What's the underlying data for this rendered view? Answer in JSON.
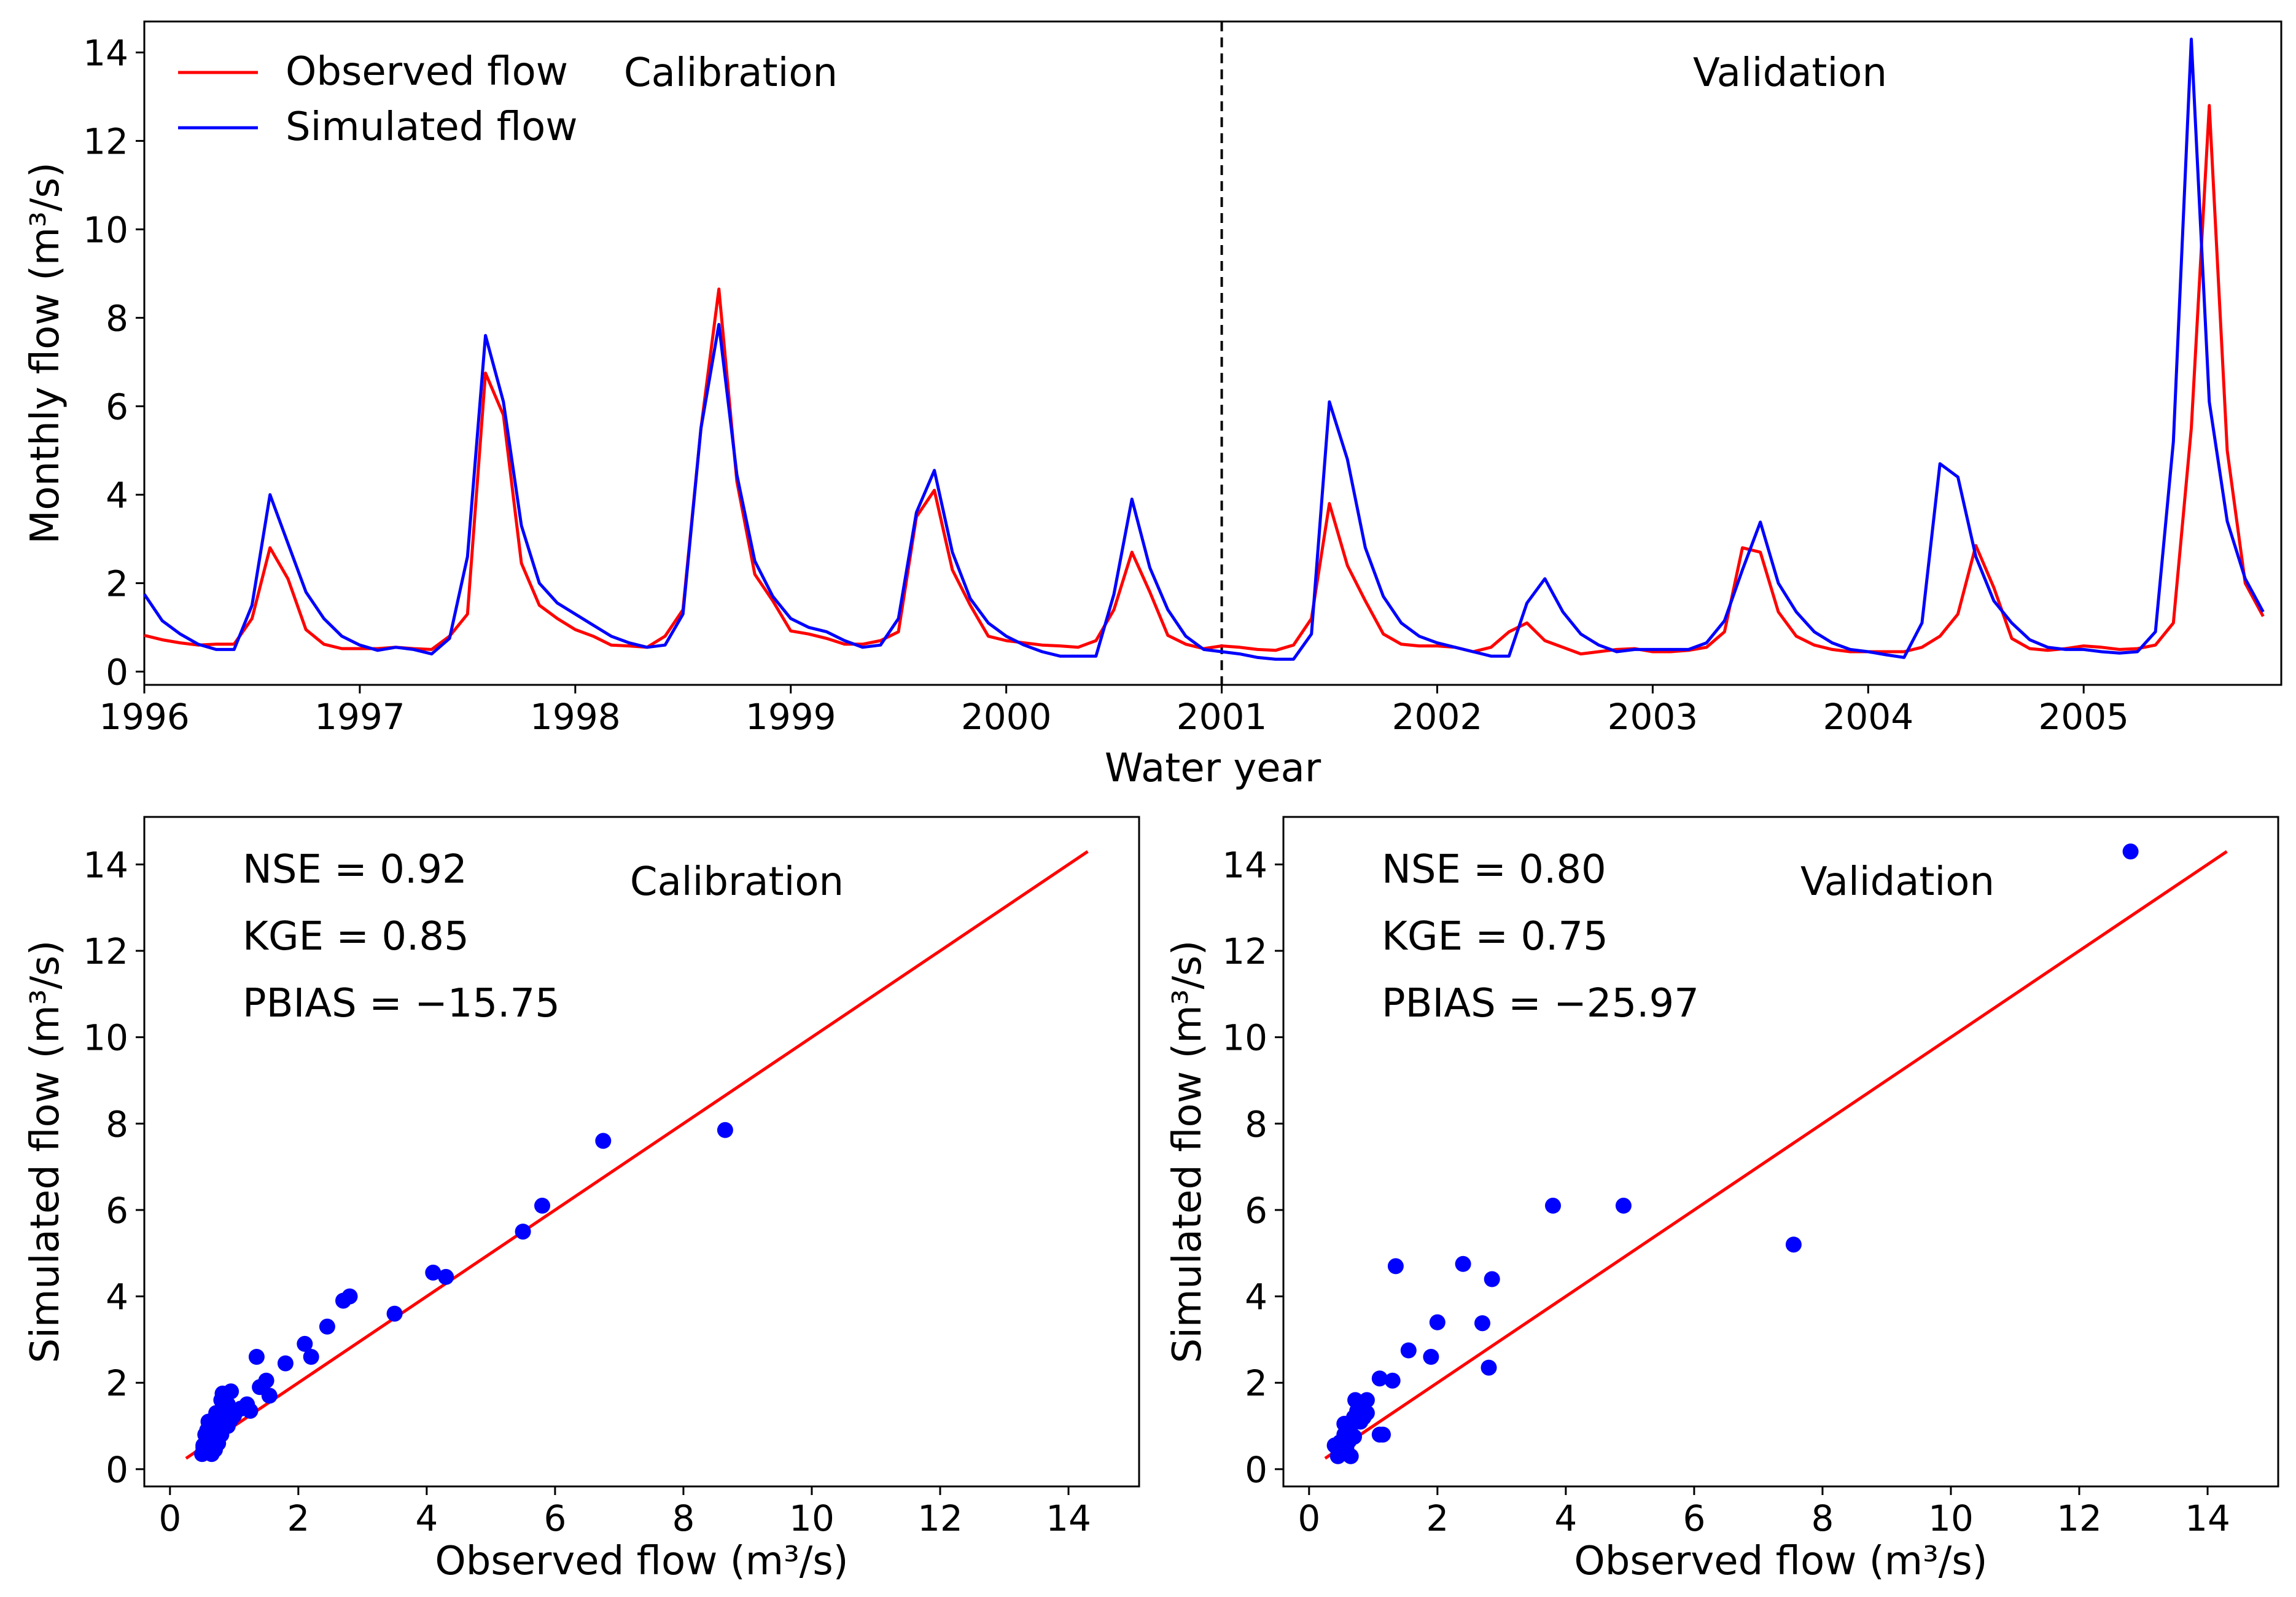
{
  "colors": {
    "observed": "#ff0000",
    "simulated": "#0000ff",
    "axis": "#000000",
    "background": "#ffffff"
  },
  "chart_data": [
    {
      "id": "timeseries",
      "type": "line",
      "title": "",
      "xlabel": "Water year",
      "ylabel": "Monthly flow (m³/s)",
      "xlim": [
        1996,
        2005.917
      ],
      "ylim": [
        -0.3,
        14.7
      ],
      "xticks": [
        1996,
        1997,
        1998,
        1999,
        2000,
        2001,
        2002,
        2003,
        2004,
        2005
      ],
      "yticks": [
        0,
        2,
        4,
        6,
        8,
        10,
        12,
        14
      ],
      "legend": {
        "position": "top-left",
        "entries": [
          "Observed flow",
          "Simulated flow"
        ]
      },
      "annotations": [
        "Calibration",
        "Validation"
      ],
      "split_line": 2001,
      "series": [
        {
          "name": "Observed flow",
          "color": "#ff0000",
          "x_start": 1996,
          "x_step": 0.08333,
          "values": [
            0.82,
            0.72,
            0.65,
            0.6,
            0.62,
            0.62,
            1.2,
            2.8,
            2.1,
            0.95,
            0.62,
            0.52,
            0.52,
            0.52,
            0.55,
            0.52,
            0.5,
            0.8,
            1.3,
            6.75,
            5.8,
            2.45,
            1.5,
            1.2,
            0.95,
            0.8,
            0.6,
            0.58,
            0.55,
            0.8,
            1.4,
            5.5,
            8.65,
            4.3,
            2.2,
            1.6,
            0.92,
            0.85,
            0.75,
            0.62,
            0.62,
            0.7,
            0.9,
            3.5,
            4.1,
            2.3,
            1.5,
            0.8,
            0.7,
            0.65,
            0.6,
            0.58,
            0.55,
            0.7,
            1.4,
            2.7,
            1.8,
            0.82,
            0.62,
            0.52,
            0.58,
            0.55,
            0.5,
            0.48,
            0.6,
            1.2,
            3.8,
            2.4,
            1.6,
            0.85,
            0.62,
            0.58,
            0.58,
            0.55,
            0.45,
            0.55,
            0.9,
            1.1,
            0.7,
            0.55,
            0.4,
            0.45,
            0.5,
            0.52,
            0.45,
            0.45,
            0.48,
            0.55,
            0.9,
            2.8,
            2.7,
            1.35,
            0.8,
            0.6,
            0.5,
            0.45,
            0.45,
            0.45,
            0.45,
            0.55,
            0.8,
            1.3,
            2.85,
            1.9,
            0.75,
            0.52,
            0.48,
            0.52,
            0.58,
            0.55,
            0.5,
            0.52,
            0.6,
            1.1,
            5.5,
            12.8,
            5.0,
            2.0,
            1.25
          ]
        },
        {
          "name": "Simulated flow",
          "color": "#0000ff",
          "x_start": 1996,
          "x_step": 0.08333,
          "values": [
            1.75,
            1.15,
            0.85,
            0.62,
            0.5,
            0.5,
            1.5,
            4.0,
            2.9,
            1.8,
            1.2,
            0.8,
            0.6,
            0.48,
            0.55,
            0.5,
            0.4,
            0.75,
            2.6,
            7.6,
            6.1,
            3.3,
            2.0,
            1.55,
            1.3,
            1.05,
            0.8,
            0.65,
            0.55,
            0.6,
            1.3,
            5.5,
            7.85,
            4.45,
            2.5,
            1.7,
            1.2,
            1.0,
            0.9,
            0.7,
            0.55,
            0.6,
            1.2,
            3.6,
            4.55,
            2.7,
            1.65,
            1.1,
            0.8,
            0.6,
            0.45,
            0.35,
            0.35,
            0.35,
            1.75,
            3.9,
            2.35,
            1.4,
            0.8,
            0.5,
            0.45,
            0.4,
            0.32,
            0.28,
            0.28,
            0.85,
            6.1,
            4.8,
            2.8,
            1.7,
            1.1,
            0.8,
            0.65,
            0.55,
            0.45,
            0.35,
            0.35,
            1.55,
            2.1,
            1.35,
            0.85,
            0.6,
            0.45,
            0.5,
            0.5,
            0.5,
            0.5,
            0.65,
            1.15,
            2.3,
            3.38,
            2.0,
            1.35,
            0.9,
            0.65,
            0.5,
            0.45,
            0.38,
            0.32,
            1.1,
            4.7,
            4.4,
            2.6,
            1.6,
            1.1,
            0.72,
            0.55,
            0.5,
            0.5,
            0.45,
            0.42,
            0.45,
            0.9,
            5.2,
            14.3,
            6.1,
            3.4,
            2.1,
            1.35
          ]
        }
      ]
    },
    {
      "id": "calibration-scatter",
      "type": "scatter",
      "title": "",
      "xlabel": "Observed flow (m³/s)",
      "ylabel": "Simulated flow (m³/s)",
      "xlim": [
        -0.4,
        15.1
      ],
      "ylim": [
        -0.4,
        15.1
      ],
      "xticks": [
        0,
        2,
        4,
        6,
        8,
        10,
        12,
        14
      ],
      "yticks": [
        0,
        2,
        4,
        6,
        8,
        10,
        12,
        14
      ],
      "annotation": "Calibration",
      "stats": [
        "NSE = 0.92",
        "KGE = 0.85",
        "PBIAS = −15.75"
      ],
      "one_to_one_line": [
        0.25,
        14.3
      ],
      "series": [
        {
          "name": "Simulated vs observed",
          "color": "#0000ff",
          "points": [
            [
              0.5,
              0.35
            ],
            [
              0.55,
              0.5
            ],
            [
              0.6,
              0.65
            ],
            [
              0.62,
              0.8
            ],
            [
              0.55,
              0.4
            ],
            [
              0.65,
              1.0
            ],
            [
              0.7,
              1.15
            ],
            [
              0.75,
              0.6
            ],
            [
              0.8,
              0.8
            ],
            [
              0.85,
              1.3
            ],
            [
              0.9,
              1.0
            ],
            [
              0.95,
              1.8
            ],
            [
              0.82,
              1.75
            ],
            [
              1.0,
              1.25
            ],
            [
              1.2,
              1.5
            ],
            [
              1.35,
              2.6
            ],
            [
              1.4,
              1.9
            ],
            [
              1.5,
              2.05
            ],
            [
              1.55,
              1.7
            ],
            [
              1.8,
              2.45
            ],
            [
              2.1,
              2.9
            ],
            [
              2.2,
              2.6
            ],
            [
              2.45,
              3.3
            ],
            [
              2.7,
              3.9
            ],
            [
              2.8,
              4.0
            ],
            [
              3.5,
              3.6
            ],
            [
              4.1,
              4.55
            ],
            [
              4.3,
              4.45
            ],
            [
              5.5,
              5.5
            ],
            [
              5.8,
              6.1
            ],
            [
              6.75,
              7.6
            ],
            [
              8.65,
              7.85
            ],
            [
              0.6,
              0.48
            ],
            [
              0.58,
              0.9
            ],
            [
              0.52,
              0.55
            ],
            [
              0.7,
              0.45
            ],
            [
              0.62,
              1.1
            ],
            [
              0.72,
              1.3
            ],
            [
              0.55,
              0.6
            ],
            [
              0.62,
              0.72
            ],
            [
              0.8,
              1.2
            ],
            [
              0.9,
              1.5
            ],
            [
              1.1,
              1.4
            ],
            [
              0.95,
              1.15
            ],
            [
              0.75,
              0.9
            ],
            [
              0.65,
              0.35
            ],
            [
              0.52,
              0.5
            ],
            [
              0.58,
              0.7
            ],
            [
              0.85,
              1.0
            ],
            [
              1.25,
              1.35
            ],
            [
              0.7,
              1.05
            ],
            [
              0.8,
              1.6
            ],
            [
              0.6,
              1.1
            ],
            [
              0.55,
              0.8
            ],
            [
              0.65,
              0.55
            ],
            [
              0.9,
              1.2
            ],
            [
              1.0,
              1.3
            ],
            [
              0.75,
              1.05
            ]
          ]
        }
      ]
    },
    {
      "id": "validation-scatter",
      "type": "scatter",
      "title": "",
      "xlabel": "Observed flow (m³/s)",
      "ylabel": "Simulated flow (m³/s)",
      "xlim": [
        -0.4,
        15.1
      ],
      "ylim": [
        -0.4,
        15.1
      ],
      "xticks": [
        0,
        2,
        4,
        6,
        8,
        10,
        12,
        14
      ],
      "yticks": [
        0,
        2,
        4,
        6,
        8,
        10,
        12,
        14
      ],
      "annotation": "Validation",
      "stats": [
        "NSE = 0.80",
        "KGE = 0.75",
        "PBIAS = −25.97"
      ],
      "one_to_one_line": [
        0.25,
        14.3
      ],
      "series": [
        {
          "name": "Simulated vs observed",
          "color": "#0000ff",
          "points": [
            [
              0.4,
              0.55
            ],
            [
              0.45,
              0.3
            ],
            [
              0.5,
              0.5
            ],
            [
              0.55,
              0.8
            ],
            [
              0.55,
              1.05
            ],
            [
              0.6,
              0.35
            ],
            [
              0.62,
              0.65
            ],
            [
              0.65,
              0.3
            ],
            [
              0.7,
              1.2
            ],
            [
              0.72,
              1.6
            ],
            [
              0.8,
              1.1
            ],
            [
              0.85,
              1.55
            ],
            [
              0.9,
              1.3
            ],
            [
              1.1,
              2.1
            ],
            [
              1.15,
              0.8
            ],
            [
              1.3,
              2.05
            ],
            [
              1.35,
              4.7
            ],
            [
              1.55,
              2.75
            ],
            [
              1.9,
              2.6
            ],
            [
              2.0,
              3.4
            ],
            [
              2.4,
              4.75
            ],
            [
              2.7,
              3.38
            ],
            [
              2.8,
              2.35
            ],
            [
              2.85,
              4.4
            ],
            [
              3.8,
              6.1
            ],
            [
              4.9,
              6.1
            ],
            [
              7.55,
              5.2
            ],
            [
              12.8,
              14.3
            ],
            [
              0.5,
              0.45
            ],
            [
              0.48,
              0.62
            ],
            [
              0.58,
              0.52
            ],
            [
              0.55,
              0.38
            ],
            [
              0.45,
              0.45
            ],
            [
              0.6,
              0.9
            ],
            [
              0.65,
              1.0
            ],
            [
              0.52,
              0.6
            ],
            [
              0.7,
              0.75
            ],
            [
              0.58,
              0.48
            ],
            [
              0.48,
              0.35
            ],
            [
              0.75,
              1.35
            ],
            [
              0.85,
              1.2
            ],
            [
              0.9,
              1.6
            ],
            [
              1.1,
              0.8
            ],
            [
              0.45,
              0.5
            ]
          ]
        }
      ]
    }
  ]
}
